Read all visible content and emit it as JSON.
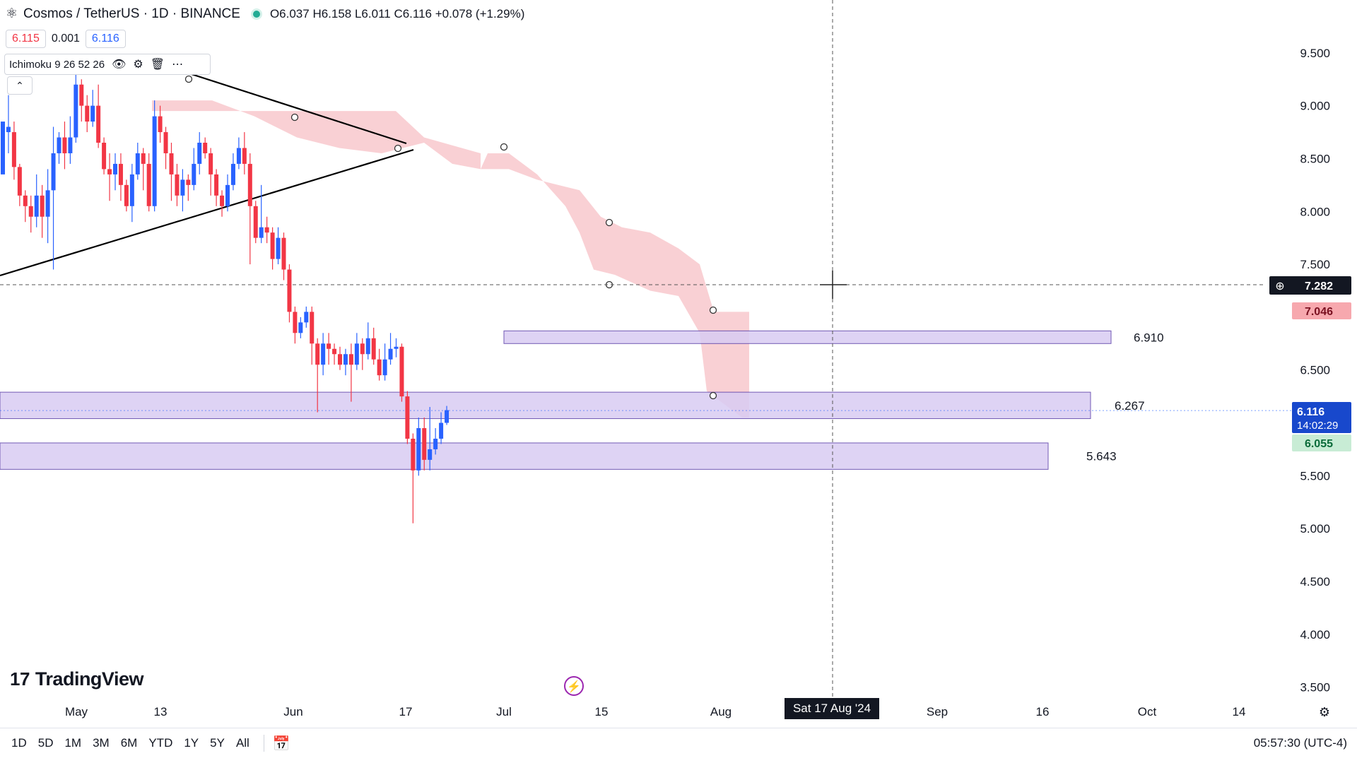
{
  "header": {
    "symbol": "Cosmos / TetherUS · 1D · BINANCE",
    "ohlc": "O6.037  H6.158  L6.011  C6.116  +0.078 (+1.29%)",
    "sell_price": "6.115",
    "spread": "0.001",
    "buy_price": "6.116",
    "indicator": "Ichimoku 9 26 52 26"
  },
  "branding": {
    "logo_text": "TradingView"
  },
  "timeframes": [
    "1D",
    "5D",
    "1M",
    "3M",
    "6M",
    "YTD",
    "1Y",
    "5Y",
    "All"
  ],
  "clock": "05:57:30 (UTC-4)",
  "crosshair_date": "Sat 17 Aug '24",
  "colors": {
    "up": "#2962ff",
    "down": "#f23645",
    "zone": "#d9ccf3",
    "cloud": "#f8c8cc",
    "axis_text": "#131722"
  },
  "chart_data": {
    "type": "candlestick",
    "title": "",
    "xlabel": "",
    "ylabel": "",
    "ylim": [
      3.25,
      10.0
    ],
    "x_ticks": [
      "May",
      "13",
      "Jun",
      "17",
      "Jul",
      "15",
      "Aug",
      "Sep",
      "16",
      "Oct",
      "14"
    ],
    "y_ticks": [
      "9.500",
      "9.000",
      "8.500",
      "8.000",
      "7.500",
      "6.500",
      "5.500",
      "5.000",
      "4.500",
      "4.000",
      "3.500"
    ],
    "price_labels": {
      "crosshair": "7.282",
      "cloud": "7.046",
      "last_price": "6.116",
      "countdown": "14:02:29",
      "other": "6.055"
    },
    "zones": [
      {
        "label": "6.910",
        "low": 6.75,
        "high": 6.87
      },
      {
        "label": "6.267",
        "low": 6.04,
        "high": 6.29
      },
      {
        "label": "5.643",
        "low": 5.56,
        "high": 5.81
      }
    ],
    "ohlc_note": "approximate daily candles",
    "candles": [
      [
        8.85,
        8.35,
        8.45,
        8.8,
        1
      ],
      [
        8.8,
        8.75,
        9.1,
        8.55,
        1
      ],
      [
        8.75,
        8.42,
        8.85,
        8.3,
        0
      ],
      [
        8.42,
        8.15,
        8.45,
        8.05,
        0
      ],
      [
        8.15,
        8.05,
        8.2,
        7.9,
        0
      ],
      [
        8.05,
        7.95,
        8.15,
        7.8,
        0
      ],
      [
        7.95,
        8.15,
        8.35,
        7.85,
        1
      ],
      [
        8.15,
        7.95,
        8.25,
        7.75,
        0
      ],
      [
        7.95,
        8.2,
        8.4,
        7.7,
        1
      ],
      [
        8.2,
        8.55,
        8.8,
        7.45,
        1
      ],
      [
        8.55,
        8.7,
        8.75,
        8.45,
        1
      ],
      [
        8.7,
        8.55,
        8.85,
        8.4,
        0
      ],
      [
        8.55,
        8.7,
        8.9,
        8.45,
        1
      ],
      [
        8.7,
        9.2,
        9.35,
        8.65,
        1
      ],
      [
        9.2,
        9.0,
        9.25,
        8.85,
        0
      ],
      [
        9.0,
        8.85,
        9.1,
        8.75,
        0
      ],
      [
        8.85,
        9.0,
        9.15,
        8.8,
        1
      ],
      [
        9.0,
        8.65,
        9.2,
        8.6,
        0
      ],
      [
        8.65,
        8.4,
        8.7,
        8.35,
        0
      ],
      [
        8.4,
        8.35,
        8.55,
        8.1,
        0
      ],
      [
        8.35,
        8.45,
        8.55,
        8.2,
        1
      ],
      [
        8.45,
        8.25,
        8.55,
        8.1,
        0
      ],
      [
        8.25,
        8.05,
        8.3,
        8.0,
        0
      ],
      [
        8.05,
        8.35,
        8.45,
        7.9,
        1
      ],
      [
        8.35,
        8.55,
        8.65,
        8.3,
        1
      ],
      [
        8.55,
        8.45,
        8.6,
        8.2,
        0
      ],
      [
        8.45,
        8.05,
        8.55,
        8.0,
        0
      ],
      [
        8.05,
        8.9,
        9.05,
        8.0,
        1
      ],
      [
        8.9,
        8.75,
        9.0,
        8.65,
        0
      ],
      [
        8.75,
        8.55,
        8.8,
        8.4,
        0
      ],
      [
        8.55,
        8.35,
        8.65,
        8.1,
        0
      ],
      [
        8.35,
        8.15,
        8.45,
        8.05,
        0
      ],
      [
        8.15,
        8.3,
        8.4,
        8.0,
        1
      ],
      [
        8.3,
        8.25,
        8.35,
        8.1,
        0
      ],
      [
        8.25,
        8.45,
        8.6,
        8.2,
        1
      ],
      [
        8.45,
        8.65,
        8.75,
        8.35,
        1
      ],
      [
        8.65,
        8.55,
        8.7,
        8.5,
        0
      ],
      [
        8.55,
        8.35,
        8.6,
        8.15,
        0
      ],
      [
        8.35,
        8.15,
        8.4,
        8.05,
        0
      ],
      [
        8.15,
        8.05,
        8.2,
        7.95,
        0
      ],
      [
        8.05,
        8.25,
        8.35,
        8.0,
        1
      ],
      [
        8.25,
        8.45,
        8.55,
        8.2,
        1
      ],
      [
        8.45,
        8.6,
        8.7,
        8.4,
        1
      ],
      [
        8.6,
        8.45,
        8.75,
        8.35,
        0
      ],
      [
        8.45,
        8.05,
        8.55,
        7.5,
        0
      ],
      [
        8.05,
        7.75,
        8.1,
        7.7,
        0
      ],
      [
        7.75,
        7.85,
        8.25,
        7.7,
        1
      ],
      [
        7.85,
        7.8,
        7.95,
        7.7,
        0
      ],
      [
        7.8,
        7.55,
        7.85,
        7.45,
        0
      ],
      [
        7.55,
        7.75,
        7.85,
        7.5,
        1
      ],
      [
        7.75,
        7.45,
        7.8,
        7.35,
        0
      ],
      [
        7.45,
        7.05,
        7.5,
        6.95,
        0
      ],
      [
        7.05,
        6.85,
        7.1,
        6.75,
        0
      ],
      [
        6.85,
        6.95,
        7.0,
        6.8,
        1
      ],
      [
        6.95,
        7.05,
        7.1,
        6.9,
        1
      ],
      [
        7.05,
        6.75,
        7.1,
        6.55,
        0
      ],
      [
        6.75,
        6.55,
        6.8,
        6.1,
        0
      ],
      [
        6.55,
        6.75,
        6.85,
        6.45,
        1
      ],
      [
        6.75,
        6.7,
        6.85,
        6.55,
        0
      ],
      [
        6.7,
        6.65,
        6.75,
        6.55,
        0
      ],
      [
        6.65,
        6.55,
        6.72,
        6.5,
        0
      ],
      [
        6.55,
        6.65,
        6.7,
        6.45,
        1
      ],
      [
        6.65,
        6.55,
        6.75,
        6.2,
        0
      ],
      [
        6.55,
        6.75,
        6.85,
        6.5,
        1
      ],
      [
        6.75,
        6.65,
        6.8,
        6.5,
        0
      ],
      [
        6.65,
        6.8,
        6.95,
        6.6,
        1
      ],
      [
        6.8,
        6.6,
        6.9,
        6.55,
        0
      ],
      [
        6.6,
        6.45,
        6.7,
        6.4,
        0
      ],
      [
        6.45,
        6.6,
        6.75,
        6.4,
        1
      ],
      [
        6.6,
        6.7,
        6.85,
        6.55,
        1
      ],
      [
        6.7,
        6.72,
        6.8,
        6.62,
        1
      ],
      [
        6.72,
        6.25,
        6.75,
        6.2,
        0
      ],
      [
        6.25,
        5.85,
        6.3,
        5.8,
        0
      ],
      [
        5.85,
        5.55,
        5.9,
        5.05,
        0
      ],
      [
        5.55,
        5.95,
        6.05,
        5.5,
        1
      ],
      [
        5.95,
        5.65,
        6.05,
        5.55,
        0
      ],
      [
        5.65,
        5.75,
        6.15,
        5.55,
        1
      ],
      [
        5.75,
        5.85,
        5.95,
        5.7,
        1
      ],
      [
        5.85,
        6.0,
        6.1,
        5.8,
        1
      ],
      [
        6.0,
        6.12,
        6.16,
        5.98,
        1
      ]
    ]
  }
}
